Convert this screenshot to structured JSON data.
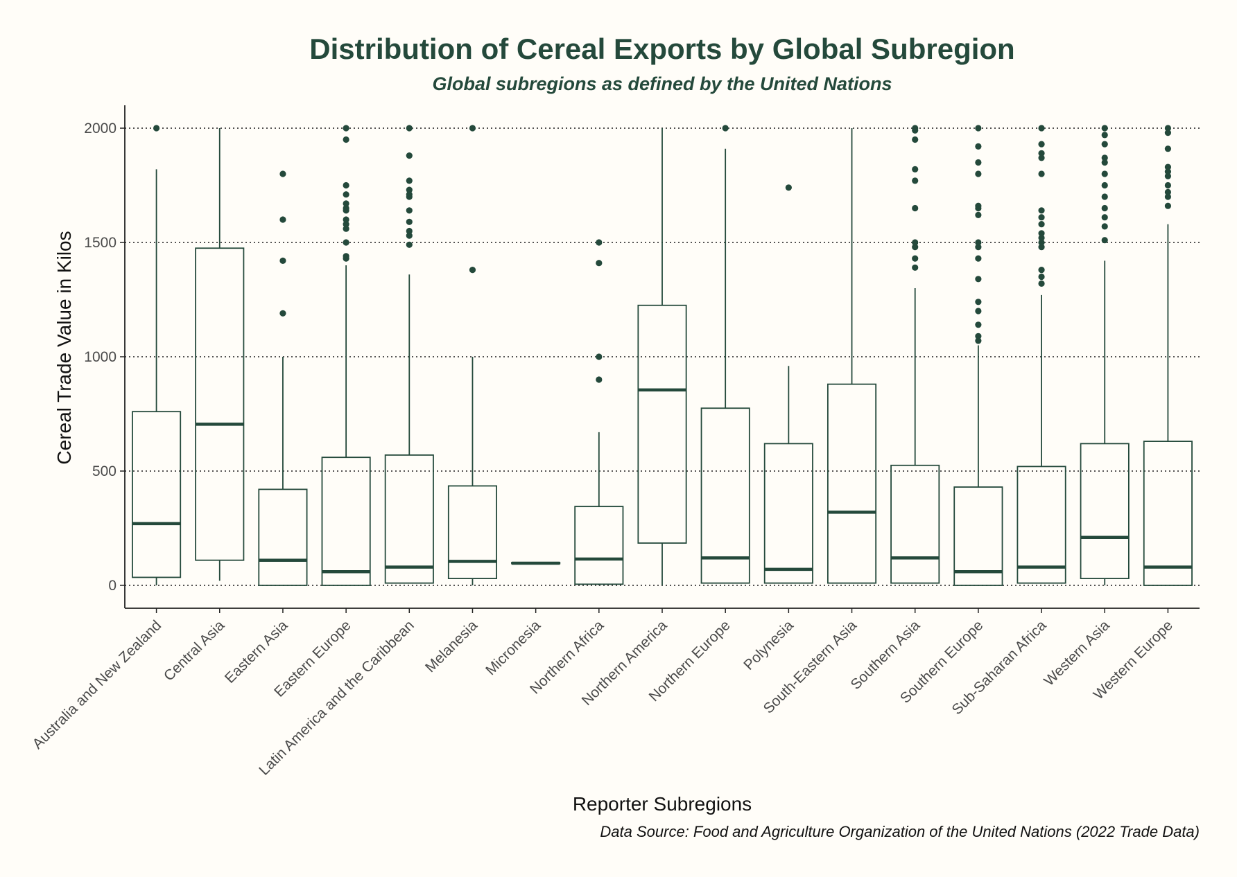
{
  "colors": {
    "background": "#fffdf8",
    "accent": "#24493b",
    "grid": "#1a1a1a",
    "tick_text": "#4a4a4a"
  },
  "chart_data": {
    "type": "box",
    "title": "Distribution of Cereal Exports by Global Subregion",
    "subtitle": "Global subregions as defined by the United Nations",
    "xlabel": "Reporter Subregions",
    "ylabel": "Cereal Trade Value in Kilos",
    "caption": "Data Source: Food and Agriculture Organization of the United Nations (2022 Trade Data)",
    "ylim": [
      -100,
      2100
    ],
    "yticks": [
      0,
      500,
      1000,
      1500,
      2000
    ],
    "grid": "horizontal dotted",
    "categories": [
      "Australia and New Zealand",
      "Central Asia",
      "Eastern Asia",
      "Eastern Europe",
      "Latin America and the Caribbean",
      "Melanesia",
      "Micronesia",
      "Northern Africa",
      "Northern America",
      "Northern Europe",
      "Polynesia",
      "South-Eastern Asia",
      "Southern Asia",
      "Southern Europe",
      "Sub-Saharan Africa",
      "Western Asia",
      "Western Europe"
    ],
    "boxes": [
      {
        "whisker_low": 0,
        "q1": 35,
        "median": 270,
        "q3": 760,
        "whisker_high": 1820,
        "outliers": [
          2000
        ]
      },
      {
        "whisker_low": 20,
        "q1": 110,
        "median": 705,
        "q3": 1475,
        "whisker_high": 2000,
        "outliers": []
      },
      {
        "whisker_low": 0,
        "q1": 0,
        "median": 110,
        "q3": 420,
        "whisker_high": 1000,
        "outliers": [
          1190,
          1420,
          1600,
          1800
        ]
      },
      {
        "whisker_low": 0,
        "q1": 0,
        "median": 60,
        "q3": 560,
        "whisker_high": 1400,
        "outliers": [
          1430,
          1440,
          1500,
          1560,
          1580,
          1600,
          1640,
          1650,
          1670,
          1710,
          1750,
          1950,
          2000
        ]
      },
      {
        "whisker_low": 10,
        "q1": 10,
        "median": 80,
        "q3": 570,
        "whisker_high": 1360,
        "outliers": [
          1490,
          1530,
          1550,
          1590,
          1640,
          1700,
          1710,
          1730,
          1770,
          1880,
          2000
        ]
      },
      {
        "whisker_low": 0,
        "q1": 30,
        "median": 105,
        "q3": 435,
        "whisker_high": 1000,
        "outliers": [
          1380,
          2000
        ]
      },
      {
        "whisker_low": 95,
        "q1": 95,
        "median": 97,
        "q3": 100,
        "whisker_high": 100,
        "outliers": []
      },
      {
        "whisker_low": 0,
        "q1": 5,
        "median": 115,
        "q3": 345,
        "whisker_high": 670,
        "outliers": [
          900,
          1000,
          1410,
          1500
        ]
      },
      {
        "whisker_low": 0,
        "q1": 185,
        "median": 855,
        "q3": 1225,
        "whisker_high": 2000,
        "outliers": []
      },
      {
        "whisker_low": 10,
        "q1": 10,
        "median": 120,
        "q3": 775,
        "whisker_high": 1910,
        "outliers": [
          2000
        ]
      },
      {
        "whisker_low": 10,
        "q1": 10,
        "median": 70,
        "q3": 620,
        "whisker_high": 960,
        "outliers": [
          1740
        ]
      },
      {
        "whisker_low": 10,
        "q1": 10,
        "median": 320,
        "q3": 880,
        "whisker_high": 2000,
        "outliers": []
      },
      {
        "whisker_low": 10,
        "q1": 10,
        "median": 120,
        "q3": 525,
        "whisker_high": 1300,
        "outliers": [
          1390,
          1430,
          1480,
          1500,
          1650,
          1770,
          1820,
          1950,
          1990,
          2000
        ]
      },
      {
        "whisker_low": 0,
        "q1": 0,
        "median": 60,
        "q3": 430,
        "whisker_high": 1050,
        "outliers": [
          1070,
          1090,
          1140,
          1200,
          1240,
          1340,
          1430,
          1480,
          1500,
          1620,
          1650,
          1660,
          1800,
          1850,
          1920,
          2000
        ]
      },
      {
        "whisker_low": 10,
        "q1": 10,
        "median": 80,
        "q3": 520,
        "whisker_high": 1270,
        "outliers": [
          1320,
          1350,
          1380,
          1480,
          1500,
          1520,
          1540,
          1580,
          1610,
          1640,
          1800,
          1870,
          1890,
          1930,
          2000
        ]
      },
      {
        "whisker_low": 0,
        "q1": 30,
        "median": 210,
        "q3": 620,
        "whisker_high": 1420,
        "outliers": [
          1510,
          1570,
          1610,
          1650,
          1700,
          1750,
          1800,
          1850,
          1870,
          1930,
          1970,
          2000
        ]
      },
      {
        "whisker_low": 0,
        "q1": 0,
        "median": 80,
        "q3": 630,
        "whisker_high": 1580,
        "outliers": [
          1660,
          1700,
          1720,
          1750,
          1790,
          1810,
          1830,
          1910,
          1980,
          2000
        ]
      }
    ]
  }
}
